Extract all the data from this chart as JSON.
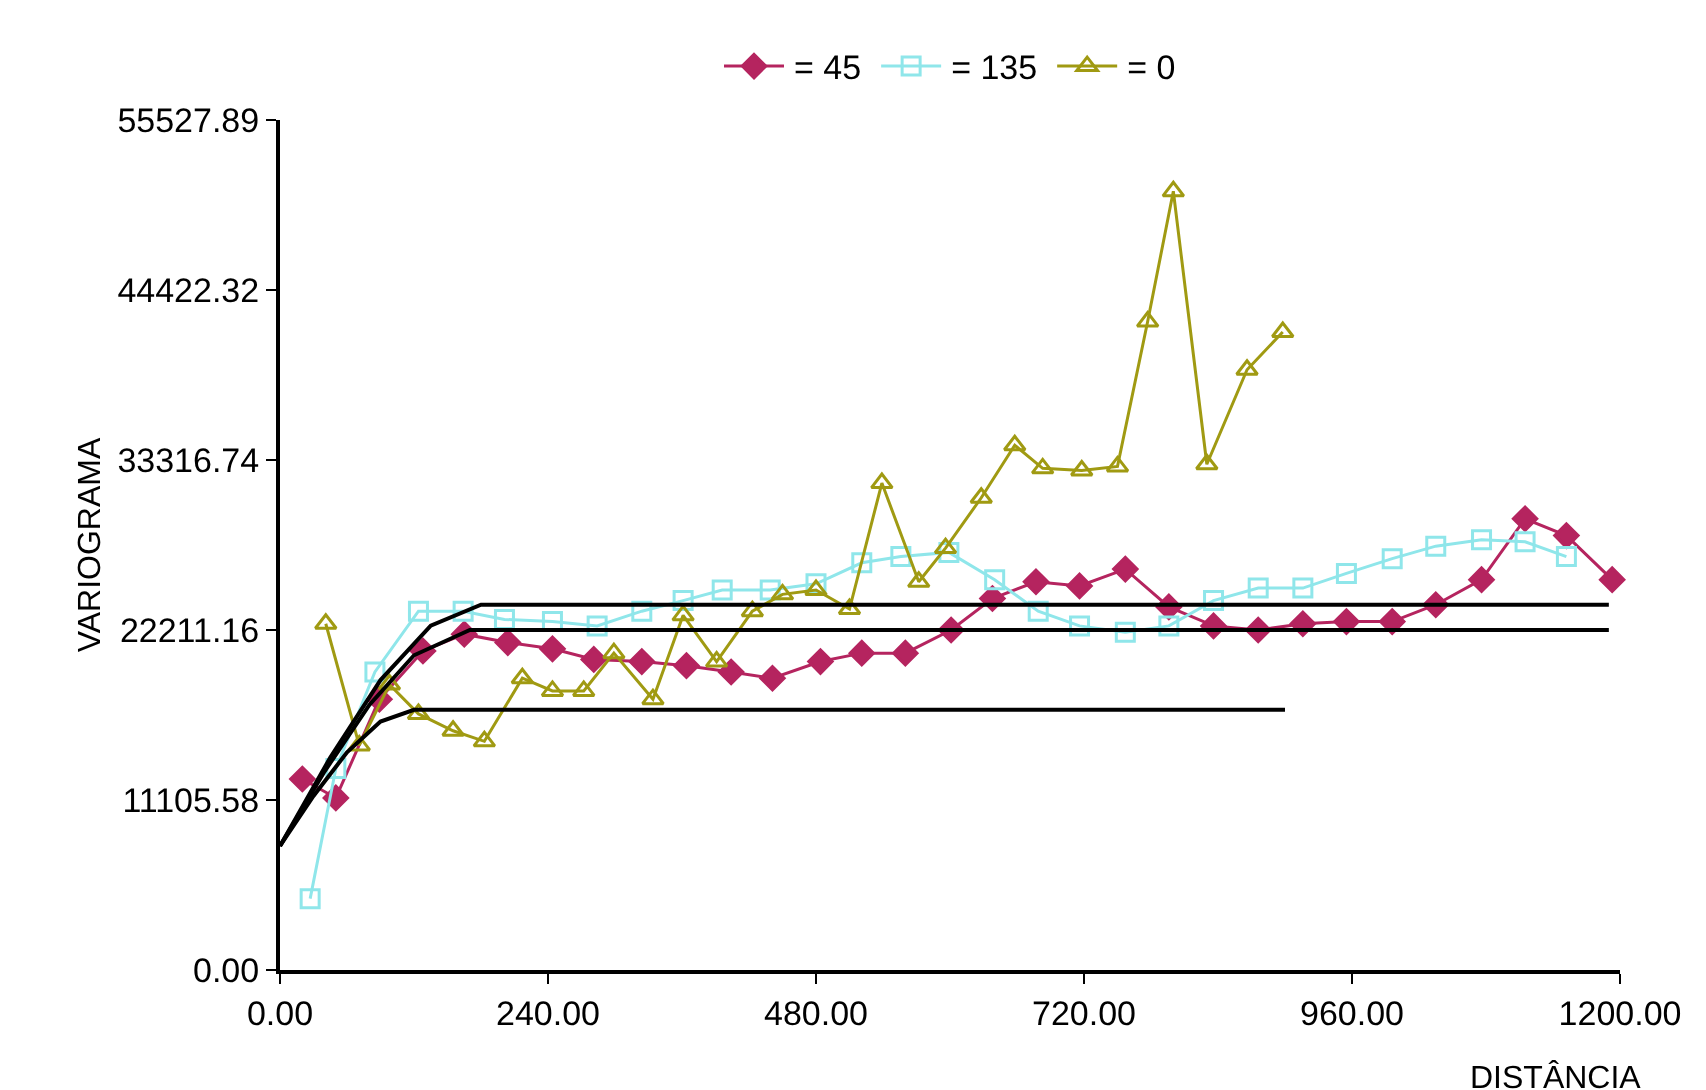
{
  "chart_data": {
    "type": "line",
    "xlabel": "DISTÂNCIA",
    "ylabel": "VARIOGRAMA",
    "xlim": [
      0,
      1200
    ],
    "ylim": [
      0,
      55527.89
    ],
    "xticks": [
      {
        "value": 0,
        "label": "0.00"
      },
      {
        "value": 240,
        "label": "240.00"
      },
      {
        "value": 480,
        "label": "480.00"
      },
      {
        "value": 720,
        "label": "720.00"
      },
      {
        "value": 960,
        "label": "960.00"
      },
      {
        "value": 1200,
        "label": "1200.00"
      }
    ],
    "yticks": [
      {
        "value": 0,
        "label": "0.00"
      },
      {
        "value": 11105.58,
        "label": "11105.58"
      },
      {
        "value": 22211.16,
        "label": "22211.16"
      },
      {
        "value": 33316.74,
        "label": "33316.74"
      },
      {
        "value": 44422.32,
        "label": "44422.32"
      },
      {
        "value": 55527.89,
        "label": "55527.89"
      }
    ],
    "legend": "top",
    "series": [
      {
        "name": "= 45",
        "color": "#b5245f",
        "marker": "diamond",
        "x": [
          20,
          50,
          89,
          128,
          165,
          204,
          244,
          281,
          324,
          364,
          404,
          441,
          484,
          521,
          560,
          601,
          638,
          677,
          716,
          757,
          796,
          836,
          876,
          916,
          955,
          996,
          1035,
          1076,
          1115,
          1152,
          1193
        ],
        "values": [
          12480,
          11240,
          17690,
          20840,
          21940,
          21390,
          20980,
          20290,
          20150,
          19880,
          19470,
          19060,
          20150,
          20700,
          20700,
          22210,
          24270,
          25360,
          25090,
          26190,
          23720,
          22480,
          22210,
          22620,
          22760,
          22760,
          23860,
          25500,
          29480,
          28380,
          25500
        ]
      },
      {
        "name": "= 135",
        "color": "#8fe6ea",
        "marker": "square",
        "x": [
          27,
          50,
          85,
          124,
          164,
          201,
          244,
          284,
          324,
          361,
          396,
          439,
          480,
          521,
          556,
          599,
          640,
          679,
          716,
          757,
          796,
          836,
          876,
          916,
          955,
          996,
          1035,
          1076,
          1115,
          1152
        ],
        "values": [
          4660,
          13160,
          19470,
          23440,
          23440,
          22900,
          22760,
          22480,
          23440,
          24130,
          24820,
          24820,
          25230,
          26600,
          27010,
          27280,
          25500,
          23440,
          22480,
          22070,
          22480,
          24130,
          24950,
          24950,
          25910,
          26870,
          27690,
          28110,
          27970,
          27010
        ]
      },
      {
        "name": "= 0",
        "color": "#a09a12",
        "marker": "triangle",
        "x": [
          41,
          71,
          98,
          124,
          155,
          183,
          217,
          244,
          272,
          299,
          334,
          361,
          391,
          423,
          450,
          480,
          510,
          539,
          572,
          596,
          628,
          658,
          683,
          718,
          750,
          777,
          800,
          830,
          866,
          898
        ],
        "values": [
          22620,
          14670,
          18650,
          16730,
          15630,
          14940,
          19060,
          18230,
          18230,
          20700,
          17690,
          23170,
          20150,
          23440,
          24540,
          24820,
          23580,
          31810,
          25360,
          27560,
          30850,
          34280,
          32770,
          32630,
          32900,
          42360,
          50870,
          33040,
          39210,
          41680
        ]
      },
      {
        "color": "#000000",
        "marker": "none",
        "x": [
          0,
          30,
          60,
          90,
          120,
          900
        ],
        "values": [
          8100,
          11370,
          14220,
          16230,
          17000,
          17000
        ]
      },
      {
        "color": "#000000",
        "marker": "none",
        "x": [
          0,
          40,
          80,
          120,
          170,
          1190
        ],
        "values": [
          8100,
          12980,
          17320,
          20560,
          22211,
          22211
        ]
      },
      {
        "color": "#000000",
        "marker": "none",
        "x": [
          0,
          45,
          90,
          135,
          180,
          1190
        ],
        "values": [
          8100,
          13880,
          18940,
          22500,
          23860,
          23860
        ]
      }
    ]
  }
}
